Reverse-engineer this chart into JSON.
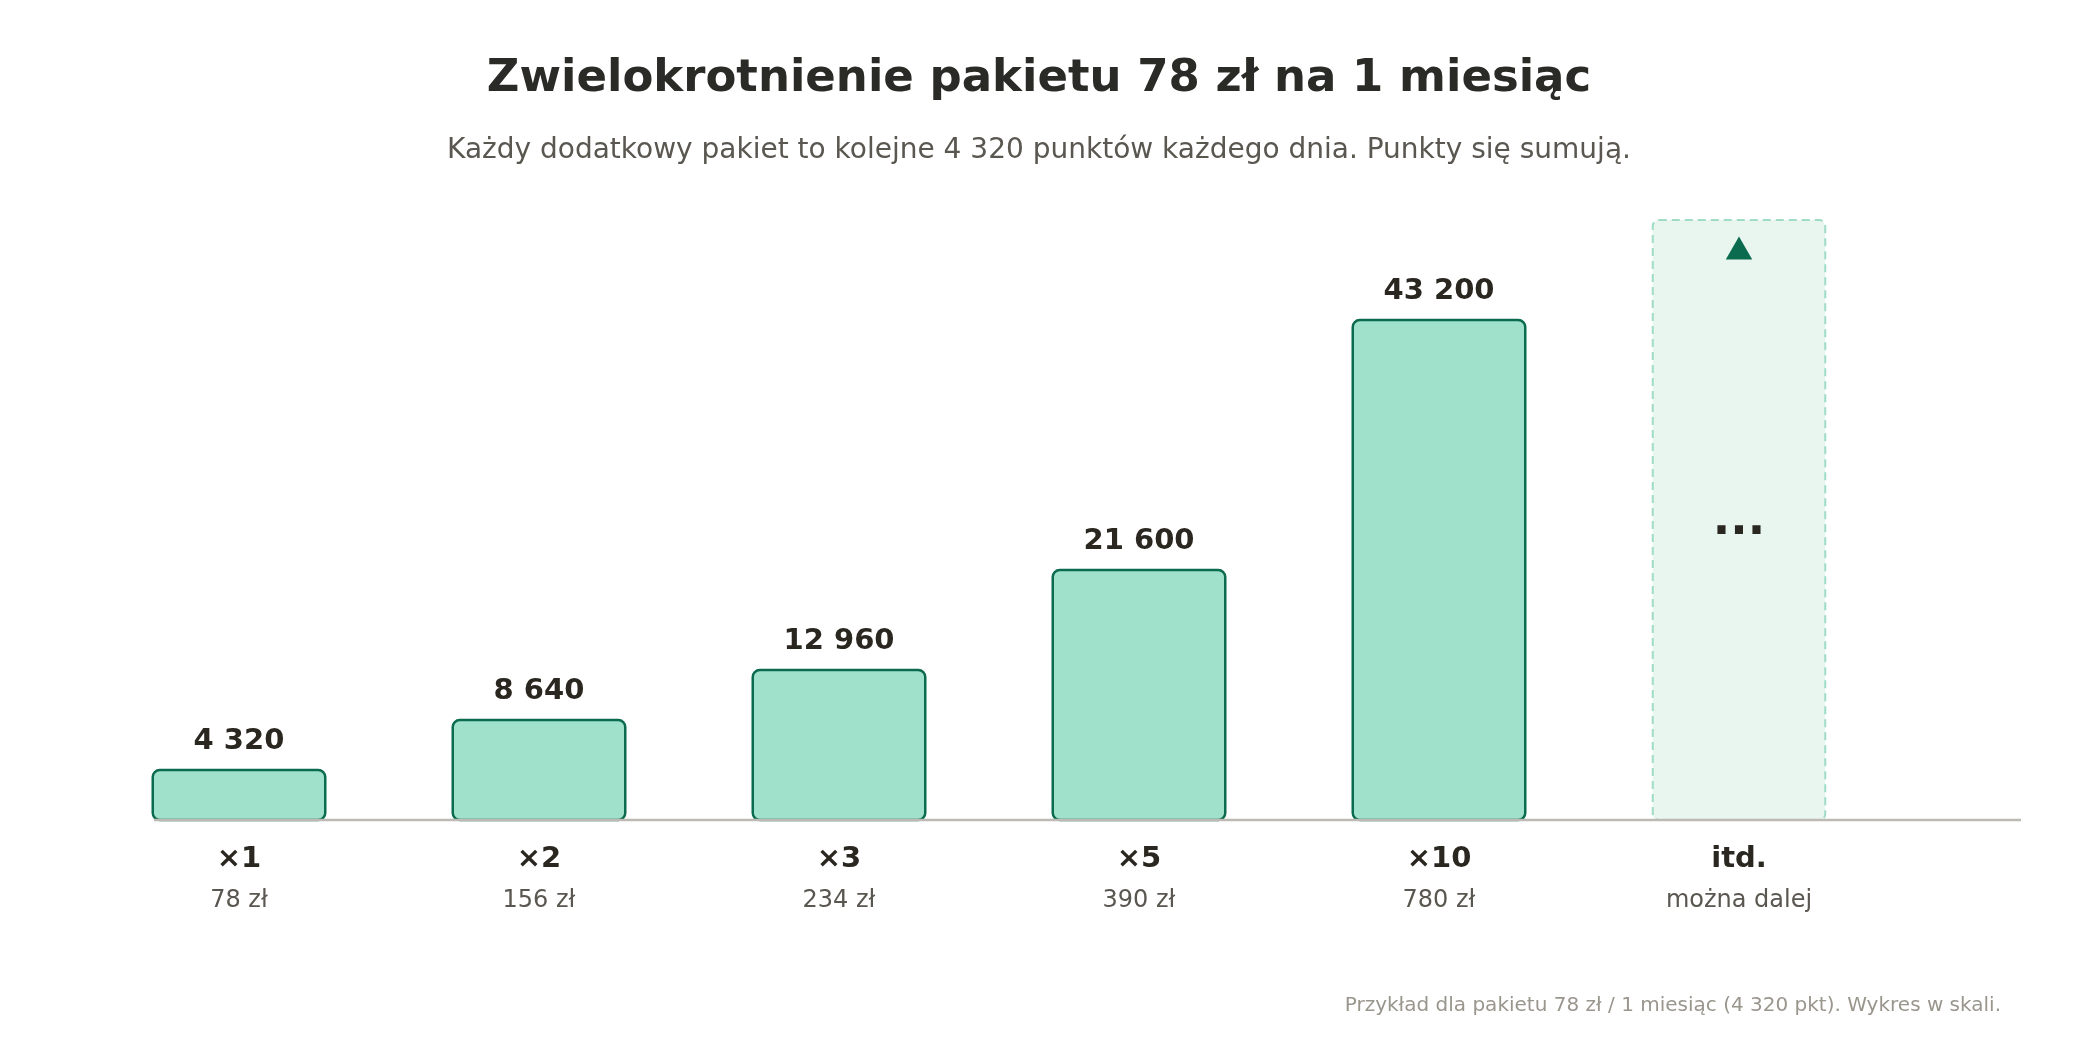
{
  "chart_data": {
    "type": "bar",
    "title": "Zwielokrotnienie pakietu 78 zł na 1 miesiąc",
    "subtitle": "Każdy dodatkowy pakiet to kolejne 4 320 punktów każdego dnia. Punkty się sumują.",
    "categories": [
      "×1",
      "×2",
      "×3",
      "×5",
      "×10",
      "itd."
    ],
    "series": [
      {
        "color": "#a0e1cc",
        "values": [
          4320,
          8640,
          12960,
          21600,
          43200,
          null
        ]
      }
    ],
    "value_labels": [
      "4 320",
      "8 640",
      "12 960",
      "21 600",
      "43 200",
      null
    ],
    "data_labels": true,
    "bands": [
      {
        "axis": "x",
        "from": "itd.",
        "to": "itd.",
        "color": "#e8f6ef"
      }
    ],
    "annotations": [
      "78 zł",
      "156 zł",
      "234 zł",
      "390 zł",
      "780 zł",
      "można dalej",
      "...",
      "Przykład dla pakietu 78 zł / 1 miesiąc (4 320 pkt). Wykres w skali."
    ]
  }
}
